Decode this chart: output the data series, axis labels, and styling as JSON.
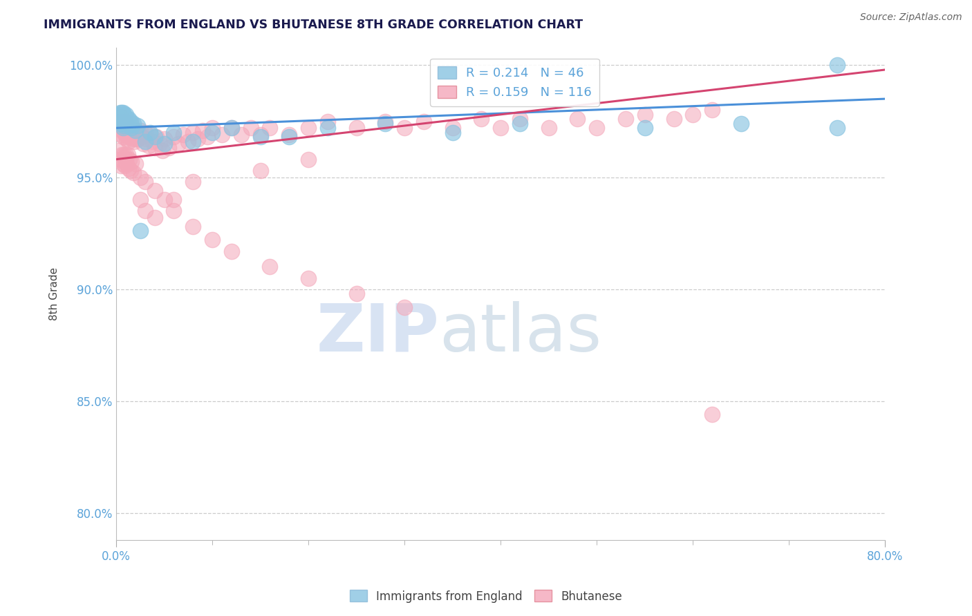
{
  "title": "IMMIGRANTS FROM ENGLAND VS BHUTANESE 8TH GRADE CORRELATION CHART",
  "source_text": "Source: ZipAtlas.com",
  "ylabel": "8th Grade",
  "xlim": [
    0.0,
    0.8
  ],
  "ylim": [
    0.788,
    1.008
  ],
  "blue_R": 0.214,
  "blue_N": 46,
  "pink_R": 0.159,
  "pink_N": 116,
  "blue_color": "#89c4e1",
  "pink_color": "#f4a7b9",
  "blue_line_color": "#4a90d9",
  "pink_line_color": "#d44470",
  "title_color": "#1a1a4e",
  "tick_color": "#5ba3d9",
  "legend_label_blue": "Immigrants from England",
  "legend_label_pink": "Bhutanese",
  "watermark_zip": "ZIP",
  "watermark_atlas": "atlas",
  "blue_scatter_x": [
    0.003,
    0.004,
    0.004,
    0.005,
    0.005,
    0.006,
    0.006,
    0.006,
    0.007,
    0.007,
    0.007,
    0.008,
    0.008,
    0.008,
    0.009,
    0.009,
    0.01,
    0.01,
    0.011,
    0.012,
    0.013,
    0.014,
    0.015,
    0.016,
    0.018,
    0.02,
    0.022,
    0.025,
    0.03,
    0.035,
    0.04,
    0.05,
    0.06,
    0.08,
    0.1,
    0.12,
    0.15,
    0.18,
    0.22,
    0.28,
    0.35,
    0.42,
    0.55,
    0.65,
    0.75,
    0.75
  ],
  "blue_scatter_y": [
    0.978,
    0.976,
    0.979,
    0.977,
    0.975,
    0.979,
    0.976,
    0.974,
    0.979,
    0.976,
    0.972,
    0.978,
    0.975,
    0.973,
    0.977,
    0.974,
    0.978,
    0.974,
    0.976,
    0.974,
    0.976,
    0.973,
    0.975,
    0.972,
    0.974,
    0.971,
    0.973,
    0.926,
    0.966,
    0.97,
    0.968,
    0.965,
    0.97,
    0.966,
    0.97,
    0.972,
    0.968,
    0.968,
    0.972,
    0.974,
    0.97,
    0.974,
    0.972,
    0.974,
    0.972,
    1.0
  ],
  "pink_scatter_x": [
    0.003,
    0.004,
    0.005,
    0.005,
    0.006,
    0.006,
    0.007,
    0.007,
    0.007,
    0.008,
    0.008,
    0.009,
    0.009,
    0.01,
    0.01,
    0.011,
    0.011,
    0.012,
    0.012,
    0.013,
    0.013,
    0.014,
    0.015,
    0.015,
    0.016,
    0.017,
    0.018,
    0.019,
    0.02,
    0.021,
    0.022,
    0.023,
    0.025,
    0.027,
    0.028,
    0.03,
    0.032,
    0.034,
    0.036,
    0.038,
    0.04,
    0.042,
    0.045,
    0.048,
    0.05,
    0.055,
    0.06,
    0.065,
    0.07,
    0.075,
    0.08,
    0.085,
    0.09,
    0.095,
    0.1,
    0.11,
    0.12,
    0.13,
    0.14,
    0.15,
    0.16,
    0.18,
    0.2,
    0.22,
    0.25,
    0.28,
    0.3,
    0.32,
    0.35,
    0.38,
    0.4,
    0.42,
    0.45,
    0.48,
    0.5,
    0.53,
    0.55,
    0.58,
    0.6,
    0.62,
    0.003,
    0.004,
    0.005,
    0.006,
    0.007,
    0.008,
    0.009,
    0.01,
    0.011,
    0.012,
    0.013,
    0.014,
    0.015,
    0.016,
    0.018,
    0.02,
    0.025,
    0.03,
    0.04,
    0.05,
    0.06,
    0.08,
    0.1,
    0.12,
    0.16,
    0.2,
    0.25,
    0.3,
    0.2,
    0.15,
    0.08,
    0.06,
    0.04,
    0.03,
    0.025,
    0.62
  ],
  "pink_scatter_y": [
    0.975,
    0.973,
    0.977,
    0.974,
    0.972,
    0.969,
    0.975,
    0.971,
    0.968,
    0.974,
    0.97,
    0.975,
    0.971,
    0.974,
    0.969,
    0.972,
    0.967,
    0.972,
    0.968,
    0.971,
    0.966,
    0.97,
    0.974,
    0.968,
    0.971,
    0.967,
    0.971,
    0.966,
    0.97,
    0.967,
    0.97,
    0.967,
    0.971,
    0.968,
    0.965,
    0.97,
    0.967,
    0.964,
    0.969,
    0.966,
    0.963,
    0.968,
    0.965,
    0.962,
    0.967,
    0.963,
    0.968,
    0.965,
    0.969,
    0.966,
    0.97,
    0.967,
    0.971,
    0.968,
    0.972,
    0.969,
    0.972,
    0.969,
    0.972,
    0.969,
    0.972,
    0.969,
    0.972,
    0.975,
    0.972,
    0.975,
    0.972,
    0.975,
    0.972,
    0.976,
    0.972,
    0.976,
    0.972,
    0.976,
    0.972,
    0.976,
    0.978,
    0.976,
    0.978,
    0.98,
    0.962,
    0.958,
    0.955,
    0.96,
    0.956,
    0.96,
    0.955,
    0.96,
    0.956,
    0.96,
    0.954,
    0.958,
    0.953,
    0.957,
    0.952,
    0.956,
    0.95,
    0.948,
    0.944,
    0.94,
    0.935,
    0.928,
    0.922,
    0.917,
    0.91,
    0.905,
    0.898,
    0.892,
    0.958,
    0.953,
    0.948,
    0.94,
    0.932,
    0.935,
    0.94,
    0.844
  ],
  "blue_line_x0": 0.0,
  "blue_line_x1": 0.8,
  "blue_line_y0": 0.972,
  "blue_line_y1": 0.985,
  "pink_line_x0": 0.0,
  "pink_line_x1": 0.8,
  "pink_line_y0": 0.958,
  "pink_line_y1": 0.998
}
